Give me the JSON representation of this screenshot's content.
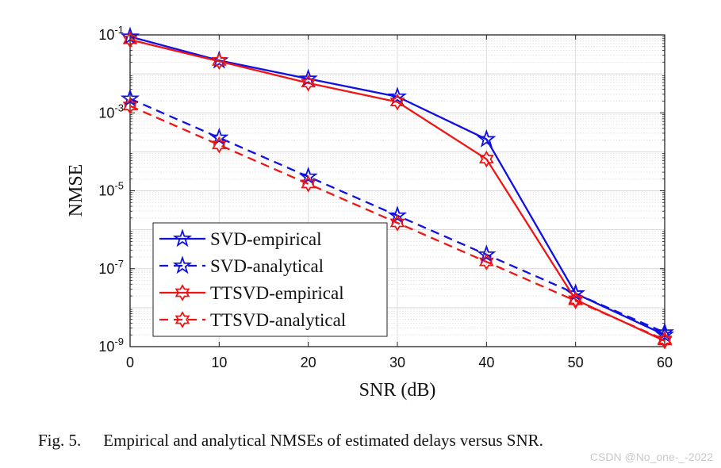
{
  "chart_data": {
    "type": "line",
    "xlabel": "SNR (dB)",
    "ylabel": "NMSE",
    "xlim": [
      0,
      60
    ],
    "ylim": [
      1e-09,
      0.1
    ],
    "yscale": "log",
    "grid": true,
    "legend_position": "bottom-left",
    "x_ticks": [
      0,
      10,
      20,
      30,
      40,
      50,
      60
    ],
    "y_ticks": [
      {
        "base": "10",
        "exp": "-1",
        "value": 0.1
      },
      {
        "base": "10",
        "exp": "-3",
        "value": 0.001
      },
      {
        "base": "10",
        "exp": "-5",
        "value": 1e-05
      },
      {
        "base": "10",
        "exp": "-7",
        "value": 1e-07
      },
      {
        "base": "10",
        "exp": "-9",
        "value": 1e-09
      }
    ],
    "x": [
      0,
      10,
      20,
      30,
      40,
      50,
      60
    ],
    "series": [
      {
        "name": "SVD-empirical",
        "color": "#1010e0",
        "dash": "solid",
        "marker": "pentagram",
        "values": [
          0.09,
          0.022,
          0.0075,
          0.0026,
          0.00021,
          2.3e-08,
          2e-09
        ]
      },
      {
        "name": "SVD-analytical",
        "color": "#1010e0",
        "dash": "dashed",
        "marker": "pentagram",
        "values": [
          0.0023,
          0.00023,
          2.3e-05,
          2.3e-06,
          2.3e-07,
          2.3e-08,
          2.3e-09
        ]
      },
      {
        "name": "TTSVD-empirical",
        "color": "#ee1515",
        "dash": "solid",
        "marker": "hexagram",
        "values": [
          0.075,
          0.021,
          0.0058,
          0.0019,
          6.5e-05,
          1.6e-08,
          1.4e-09
        ]
      },
      {
        "name": "TTSVD-analytical",
        "color": "#ee1515",
        "dash": "dashed",
        "marker": "hexagram",
        "values": [
          0.0015,
          0.00015,
          1.5e-05,
          1.5e-06,
          1.5e-07,
          1.5e-08,
          1.5e-09
        ]
      }
    ]
  },
  "caption": {
    "fig_label": "Fig. 5.",
    "text": "Empirical and analytical NMSEs of estimated delays versus SNR."
  },
  "watermark": "CSDN @No_one-_-2022"
}
